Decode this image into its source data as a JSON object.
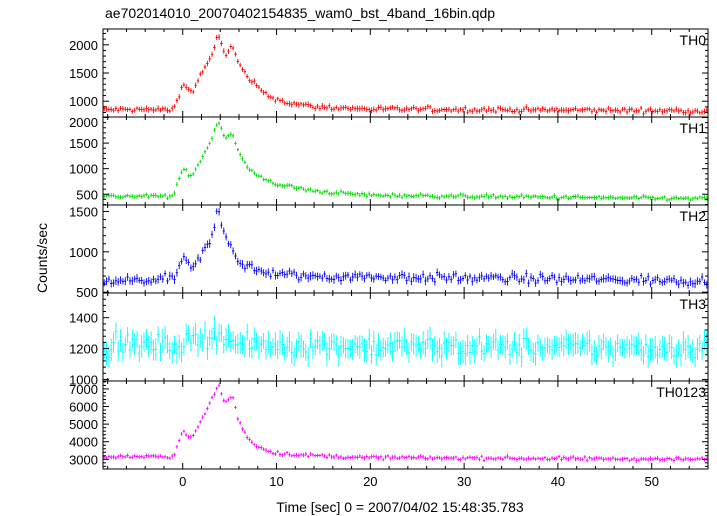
{
  "chart_data": {
    "type": "line",
    "title": "ae702014010_20070402154835_wam0_bst_4band_16bin.qdp",
    "xlabel": "Time [sec] 0 = 2007/04/02 15:48:35.783",
    "ylabel": "Counts/sec",
    "xlim": [
      -8.5,
      56
    ],
    "x_ticks": [
      0,
      10,
      20,
      30,
      40,
      50
    ],
    "x_tick_labels": [
      "0",
      "10",
      "20",
      "30",
      "40",
      "50"
    ],
    "bin_width": 0.25,
    "grid": false,
    "legend": "none",
    "panels": [
      {
        "name": "TH0",
        "color": "#ff0000",
        "ylim": [
          720,
          2280
        ],
        "y_ticks": [
          1000,
          1500,
          2000
        ],
        "y_tick_labels": [
          "1000",
          "1500",
          "2000"
        ],
        "baseline": 840,
        "noise": 30,
        "err": 45,
        "profile": [
          [
            -8.5,
            850
          ],
          [
            -1,
            850
          ],
          [
            0,
            1300
          ],
          [
            1,
            1150
          ],
          [
            2,
            1500
          ],
          [
            3,
            1750
          ],
          [
            3.8,
            2200
          ],
          [
            4.5,
            1800
          ],
          [
            5.2,
            2000
          ],
          [
            6,
            1650
          ],
          [
            7,
            1400
          ],
          [
            8,
            1250
          ],
          [
            9,
            1100
          ],
          [
            11,
            980
          ],
          [
            14,
            900
          ],
          [
            20,
            860
          ],
          [
            56,
            830
          ]
        ]
      },
      {
        "name": "TH1",
        "color": "#00dd00",
        "ylim": [
          290,
          2010
        ],
        "y_ticks": [
          500,
          1000,
          1500,
          2000
        ],
        "y_tick_labels": [
          "500",
          "1000",
          "1500",
          "2000"
        ],
        "baseline": 440,
        "noise": 25,
        "err": 40,
        "profile": [
          [
            -8.5,
            460
          ],
          [
            -1,
            460
          ],
          [
            0,
            1000
          ],
          [
            1,
            850
          ],
          [
            2,
            1200
          ],
          [
            3,
            1550
          ],
          [
            3.8,
            1950
          ],
          [
            4.5,
            1600
          ],
          [
            5.3,
            1700
          ],
          [
            6,
            1300
          ],
          [
            7,
            1000
          ],
          [
            8,
            850
          ],
          [
            10,
            700
          ],
          [
            14,
            560
          ],
          [
            20,
            480
          ],
          [
            56,
            410
          ]
        ]
      },
      {
        "name": "TH2",
        "color": "#0000ff",
        "ylim": [
          490,
          1580
        ],
        "y_ticks": [
          500,
          1000,
          1500
        ],
        "y_tick_labels": [
          "500",
          "1000",
          "1500"
        ],
        "baseline": 640,
        "noise": 40,
        "err": 45,
        "profile": [
          [
            -8.5,
            630
          ],
          [
            -1,
            660
          ],
          [
            0,
            920
          ],
          [
            1,
            780
          ],
          [
            2,
            950
          ],
          [
            3,
            1150
          ],
          [
            3.8,
            1550
          ],
          [
            4.5,
            1200
          ],
          [
            5.3,
            1050
          ],
          [
            6,
            870
          ],
          [
            8,
            760
          ],
          [
            12,
            700
          ],
          [
            56,
            640
          ]
        ]
      },
      {
        "name": "TH3",
        "color": "#00ffff",
        "ylim": [
          990,
          1560
        ],
        "y_ticks": [
          1000,
          1200,
          1400
        ],
        "y_tick_labels": [
          "1000",
          "1200",
          "1400"
        ],
        "baseline": 1210,
        "noise": 45,
        "err": 65,
        "profile": [
          [
            -8.5,
            1220
          ],
          [
            0,
            1220
          ],
          [
            3.5,
            1300
          ],
          [
            4.5,
            1280
          ],
          [
            6,
            1220
          ],
          [
            56,
            1200
          ]
        ]
      },
      {
        "name": "TH0123",
        "color": "#ff00ff",
        "ylim": [
          2450,
          7450
        ],
        "y_ticks": [
          3000,
          4000,
          5000,
          6000,
          7000
        ],
        "y_tick_labels": [
          "3000",
          "4000",
          "5000",
          "6000",
          "7000"
        ],
        "baseline": 3080,
        "noise": 70,
        "err": 110,
        "profile": [
          [
            -8.5,
            3150
          ],
          [
            -1,
            3150
          ],
          [
            0,
            4600
          ],
          [
            1,
            4200
          ],
          [
            2,
            5200
          ],
          [
            3,
            6300
          ],
          [
            3.8,
            7250
          ],
          [
            4.5,
            6200
          ],
          [
            5.3,
            6600
          ],
          [
            6,
            5100
          ],
          [
            7,
            4200
          ],
          [
            8,
            3700
          ],
          [
            10,
            3350
          ],
          [
            14,
            3200
          ],
          [
            20,
            3100
          ],
          [
            56,
            3000
          ]
        ]
      }
    ]
  }
}
